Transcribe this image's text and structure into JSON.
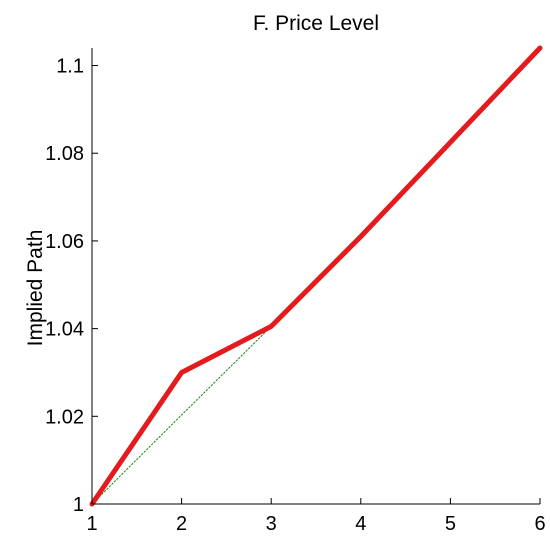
{
  "chart_data": {
    "type": "line",
    "title": "F. Price Level",
    "xlabel": "",
    "ylabel": "Implied Path",
    "xlim": [
      1,
      6
    ],
    "ylim": [
      1,
      1.104
    ],
    "xticks": [
      1,
      2,
      3,
      4,
      5,
      6
    ],
    "xtick_labels": [
      "1",
      "2",
      "3",
      "4",
      "5",
      "6"
    ],
    "yticks": [
      1,
      1.02,
      1.04,
      1.06,
      1.08,
      1.1
    ],
    "ytick_labels": [
      "1",
      "1.02",
      "1.04",
      "1.06",
      "1.08",
      "1.1"
    ],
    "grid": false,
    "legend": "none",
    "series": [
      {
        "style": "solid-thick",
        "color": "#e41a1c",
        "x": [
          1,
          2,
          3,
          4,
          5,
          6
        ],
        "values": [
          1.0,
          1.03,
          1.0405,
          1.061,
          1.0825,
          1.104
        ]
      },
      {
        "style": "dotted-thin",
        "color": "#1a7f1a",
        "x": [
          1,
          2,
          3
        ],
        "values": [
          1.0,
          1.0203,
          1.0405
        ]
      }
    ]
  }
}
